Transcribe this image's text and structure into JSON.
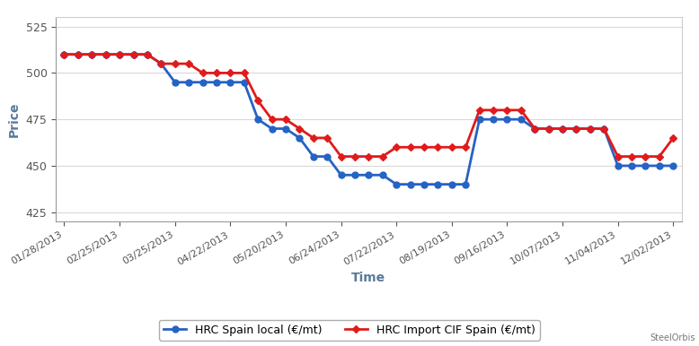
{
  "chart_data": {
    "type": "line",
    "x_label": "Time",
    "y_label": "Price",
    "source": "SteelOrbis",
    "categories": [
      "01/28/2013",
      null,
      null,
      null,
      "02/25/2013",
      null,
      null,
      null,
      "03/25/2013",
      null,
      null,
      null,
      "04/22/2013",
      null,
      null,
      null,
      "05/20/2013",
      null,
      null,
      null,
      "06/24/2013",
      null,
      null,
      null,
      "07/22/2013",
      null,
      null,
      null,
      "08/19/2013",
      null,
      null,
      null,
      "09/16/2013",
      null,
      null,
      null,
      "10/07/2013",
      null,
      null,
      null,
      "11/04/2013",
      null,
      null,
      null,
      "12/02/2013"
    ],
    "series": [
      {
        "name": "HRC Spain local (€/mt)",
        "color": "#2563c4",
        "marker": "circle",
        "values": [
          510,
          510,
          510,
          510,
          510,
          510,
          510,
          505,
          495,
          495,
          495,
          495,
          495,
          495,
          475,
          470,
          470,
          465,
          455,
          455,
          445,
          445,
          445,
          445,
          440,
          440,
          440,
          440,
          440,
          440,
          475,
          475,
          475,
          475,
          470,
          470,
          470,
          470,
          470,
          470,
          450,
          450,
          450,
          450,
          450
        ]
      },
      {
        "name": "HRC Import CIF Spain (€/mt)",
        "color": "#e01b1b",
        "marker": "diamond",
        "values": [
          510,
          510,
          510,
          510,
          510,
          510,
          510,
          505,
          505,
          505,
          500,
          500,
          500,
          500,
          485,
          475,
          475,
          470,
          465,
          465,
          455,
          455,
          455,
          455,
          460,
          460,
          460,
          460,
          460,
          460,
          480,
          480,
          480,
          480,
          470,
          470,
          470,
          470,
          470,
          470,
          455,
          455,
          455,
          455,
          465
        ]
      }
    ],
    "ylim": [
      420,
      530
    ],
    "yticks": [
      425,
      450,
      475,
      500,
      525
    ],
    "grid": true,
    "legend": "lower center"
  }
}
